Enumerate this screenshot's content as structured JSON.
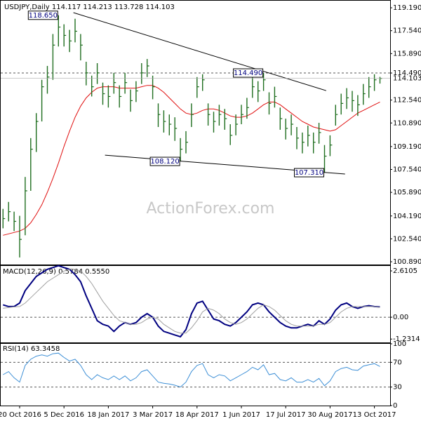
{
  "chart_data": [
    {
      "type": "ohlc",
      "title": "USDJPY,Daily  114.117 114.213 113.728 114.103",
      "watermark": "ActionForex.com",
      "categories": [
        null,
        null,
        null,
        "20 Oct 2016",
        null,
        null,
        null,
        null,
        null,
        null,
        null,
        "5 Dec 2016",
        null,
        null,
        null,
        null,
        null,
        null,
        null,
        "18 Jan 2017",
        null,
        null,
        null,
        null,
        null,
        null,
        null,
        "3 Mar 2017",
        null,
        null,
        null,
        null,
        null,
        null,
        null,
        "18 Apr 2017",
        null,
        null,
        null,
        null,
        null,
        null,
        null,
        "1 Jun 2017",
        null,
        null,
        null,
        null,
        null,
        null,
        null,
        "17 Jul 2017",
        null,
        null,
        null,
        null,
        null,
        null,
        null,
        "30 Aug 2017",
        null,
        null,
        null,
        null,
        null,
        null,
        null,
        "13 Oct 2017",
        null
      ],
      "high": [
        104.7,
        105.2,
        104.5,
        104.2,
        107.0,
        109.8,
        111.6,
        114.0,
        115.0,
        117.3,
        118.65,
        118.0,
        117.6,
        118.4,
        117.3,
        115.3,
        114.3,
        115.2,
        113.8,
        113.6,
        114.5,
        113.6,
        114.5,
        113.3,
        113.9,
        115.2,
        115.5,
        114.3,
        112.3,
        111.8,
        111.5,
        111.3,
        109.8,
        110.3,
        112.3,
        114.2,
        114.4,
        112.3,
        111.7,
        112.2,
        111.9,
        110.8,
        111.5,
        112.2,
        112.7,
        114.2,
        113.9,
        114.49,
        113.1,
        113.5,
        112.0,
        111.2,
        111.5,
        110.6,
        110.2,
        110.7,
        110.2,
        110.9,
        109.3,
        110.0,
        112.2,
        113.0,
        113.4,
        113.2,
        112.9,
        113.7,
        114.2,
        114.4,
        114.213
      ],
      "low": [
        103.3,
        103.8,
        103.1,
        101.2,
        102.8,
        106.0,
        108.8,
        111.0,
        113.0,
        114.0,
        116.4,
        116.4,
        116.0,
        116.7,
        115.4,
        113.6,
        112.8,
        113.7,
        112.2,
        112.0,
        113.0,
        112.0,
        113.0,
        111.7,
        112.4,
        113.7,
        114.2,
        112.6,
        110.6,
        110.2,
        110.0,
        109.6,
        108.12,
        108.7,
        110.6,
        112.7,
        113.2,
        110.7,
        110.2,
        110.7,
        110.4,
        109.3,
        110.0,
        110.8,
        111.2,
        112.7,
        112.4,
        113.2,
        111.5,
        112.0,
        110.4,
        109.7,
        110.0,
        109.0,
        108.7,
        109.2,
        108.7,
        109.4,
        107.31,
        108.5,
        110.7,
        111.5,
        111.9,
        111.7,
        111.4,
        112.2,
        112.7,
        113.2,
        113.728
      ],
      "close": [
        104.0,
        104.5,
        103.8,
        102.5,
        106.0,
        109.0,
        111.0,
        113.5,
        114.2,
        116.5,
        117.8,
        117.2,
        116.8,
        117.5,
        116.5,
        114.5,
        113.5,
        114.5,
        113.0,
        112.8,
        113.8,
        112.8,
        113.8,
        112.5,
        113.2,
        114.5,
        115.0,
        113.5,
        111.5,
        111.0,
        110.8,
        110.5,
        109.0,
        109.5,
        111.5,
        113.5,
        114.0,
        111.5,
        111.0,
        111.5,
        111.2,
        110.0,
        110.8,
        111.5,
        112.0,
        113.5,
        113.2,
        114.0,
        112.3,
        112.8,
        111.2,
        110.5,
        110.8,
        109.8,
        109.5,
        110.0,
        109.5,
        110.2,
        108.5,
        109.3,
        111.5,
        112.3,
        112.7,
        112.5,
        112.2,
        113.0,
        113.5,
        114.0,
        114.103
      ],
      "color": "#1f6e1f",
      "moving_average": {
        "color": "#e01010",
        "values": [
          102.8,
          102.9,
          103.0,
          103.1,
          103.3,
          103.7,
          104.3,
          105.0,
          105.9,
          106.9,
          108.0,
          109.2,
          110.3,
          111.3,
          112.1,
          112.7,
          113.1,
          113.4,
          113.5,
          113.5,
          113.5,
          113.4,
          113.4,
          113.4,
          113.4,
          113.5,
          113.6,
          113.6,
          113.4,
          113.1,
          112.7,
          112.3,
          111.9,
          111.6,
          111.5,
          111.6,
          111.8,
          111.9,
          111.9,
          111.8,
          111.6,
          111.4,
          111.3,
          111.3,
          111.4,
          111.6,
          111.9,
          112.2,
          112.4,
          112.4,
          112.2,
          111.9,
          111.6,
          111.3,
          111.0,
          110.8,
          110.6,
          110.5,
          110.4,
          110.3,
          110.4,
          110.7,
          111.0,
          111.3,
          111.6,
          111.8,
          112.0,
          112.2,
          112.4
        ]
      },
      "ylim": [
        100.69,
        119.7
      ],
      "yticks": [
        {
          "value": 119.19,
          "label": "119.190"
        },
        {
          "value": 117.54,
          "label": "117.540"
        },
        {
          "value": 115.89,
          "label": "115.890"
        },
        {
          "value": 112.54,
          "label": "112.540"
        },
        {
          "value": 110.89,
          "label": "110.890"
        },
        {
          "value": 109.19,
          "label": "109.190"
        },
        {
          "value": 107.54,
          "label": "107.540"
        },
        {
          "value": 105.89,
          "label": "105.890"
        },
        {
          "value": 104.19,
          "label": "104.190"
        },
        {
          "value": 102.54,
          "label": "102.540"
        },
        {
          "value": 100.89,
          "label": "100.890"
        }
      ],
      "levels": [
        {
          "value": 114.49,
          "label": "114.490"
        }
      ],
      "price_marker": {
        "value": 114.103,
        "label": "114.103"
      },
      "annotations": [
        {
          "x": 10,
          "value": 118.65,
          "label": "118.650"
        },
        {
          "x": 47,
          "value": 114.49,
          "label": "114.490"
        },
        {
          "x": 32,
          "value": 108.12,
          "label": "108.120"
        },
        {
          "x": 58,
          "value": 107.31,
          "label": "107.310"
        }
      ],
      "trendlines": [
        {
          "x": [
            12.7,
            58.3
          ],
          "values": [
            118.84,
            113.22
          ]
        },
        {
          "x": [
            18.4,
            61.7
          ],
          "values": [
            108.57,
            107.21
          ]
        }
      ]
    },
    {
      "type": "line",
      "title": "MACD(12,26,9) 0.5784 0.5550",
      "series": [
        {
          "color": "#000080",
          "values": [
            0.7,
            0.6,
            0.6,
            0.8,
            1.5,
            1.9,
            2.3,
            2.5,
            2.7,
            2.8,
            2.9,
            2.8,
            2.7,
            2.4,
            2.0,
            1.2,
            0.5,
            -0.2,
            -0.4,
            -0.5,
            -0.8,
            -0.5,
            -0.3,
            -0.4,
            -0.3,
            0.0,
            0.2,
            0.0,
            -0.5,
            -0.8,
            -0.9,
            -1.0,
            -1.1,
            -0.7,
            0.2,
            0.8,
            0.9,
            0.4,
            -0.1,
            -0.2,
            -0.4,
            -0.5,
            -0.3,
            0.0,
            0.3,
            0.7,
            0.8,
            0.7,
            0.3,
            0.0,
            -0.3,
            -0.5,
            -0.6,
            -0.6,
            -0.5,
            -0.4,
            -0.5,
            -0.2,
            -0.4,
            -0.1,
            0.4,
            0.7,
            0.8,
            0.6,
            0.5,
            0.6,
            0.65,
            0.6,
            0.5784
          ]
        },
        {
          "color": "#a0a0a0",
          "values": [
            0.5,
            0.55,
            0.58,
            0.6,
            0.8,
            1.1,
            1.4,
            1.7,
            2.0,
            2.2,
            2.4,
            2.6,
            2.7,
            2.7,
            2.6,
            2.3,
            1.9,
            1.4,
            0.9,
            0.5,
            0.1,
            -0.2,
            -0.3,
            -0.4,
            -0.4,
            -0.3,
            -0.1,
            0.0,
            -0.1,
            -0.4,
            -0.6,
            -0.8,
            -0.9,
            -0.9,
            -0.6,
            -0.2,
            0.3,
            0.5,
            0.4,
            0.2,
            -0.1,
            -0.3,
            -0.4,
            -0.3,
            -0.1,
            0.2,
            0.5,
            0.7,
            0.6,
            0.4,
            0.1,
            -0.2,
            -0.4,
            -0.5,
            -0.5,
            -0.5,
            -0.5,
            -0.4,
            -0.4,
            -0.3,
            0.0,
            0.3,
            0.5,
            0.6,
            0.6,
            0.6,
            0.6,
            0.6,
            0.555
          ]
        }
      ],
      "ylim": [
        -1.42,
        2.89
      ],
      "yticks": [
        2.6105,
        {
          "value": 0,
          "label": "0.00"
        },
        -1.2314
      ],
      "levels": [
        0
      ]
    },
    {
      "type": "line",
      "title": "RSI(14) 63.3458",
      "series": [
        {
          "color": "#3d8fd6",
          "values": [
            50,
            55,
            45,
            38,
            65,
            75,
            80,
            82,
            80,
            84,
            85,
            78,
            72,
            75,
            65,
            50,
            42,
            50,
            45,
            42,
            48,
            42,
            48,
            40,
            45,
            55,
            58,
            48,
            38,
            36,
            35,
            33,
            30,
            38,
            55,
            65,
            68,
            50,
            45,
            50,
            48,
            40,
            45,
            50,
            55,
            62,
            58,
            66,
            50,
            52,
            42,
            40,
            45,
            38,
            38,
            42,
            38,
            44,
            32,
            40,
            55,
            60,
            62,
            58,
            57,
            64,
            66,
            68,
            63.3458
          ]
        }
      ],
      "ylim": [
        0,
        100
      ],
      "yticks": [
        100,
        70,
        30,
        0
      ],
      "levels": [
        70,
        30
      ]
    }
  ]
}
